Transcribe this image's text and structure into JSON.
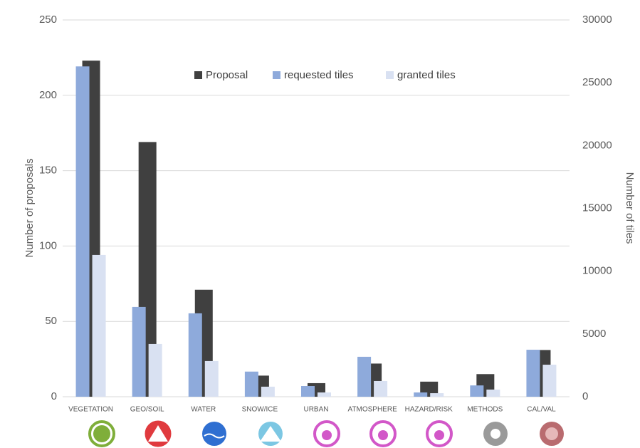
{
  "chart_data": {
    "type": "bar",
    "y_label": "Number of proposals",
    "y2_label": "Number of tiles",
    "categories": [
      "VEGETATION",
      "GEO/SOIL",
      "WATER",
      "SNOW/ICE",
      "URBAN",
      "ATMOSPHERE",
      "HAZARD/RISK",
      "METHODS",
      "CAL/VAL"
    ],
    "series": [
      {
        "name": "Proposal",
        "color": "#404040",
        "values": [
          223,
          169,
          71,
          14,
          9,
          22,
          10,
          15,
          31
        ]
      },
      {
        "name": "requested tiles",
        "color": "#8eaadb",
        "axis": "y2",
        "values": [
          26300,
          7150,
          6640,
          2000,
          850,
          3180,
          340,
          900,
          3740
        ]
      },
      {
        "name": "granted tiles",
        "color": "#d9e1f2",
        "axis": "y2",
        "values": [
          11290,
          4200,
          2840,
          800,
          340,
          1250,
          280,
          570,
          2550
        ]
      }
    ],
    "ylim": [
      0,
      250
    ],
    "yticks": [
      0,
      50,
      100,
      150,
      200,
      250
    ],
    "y2lim": [
      0,
      30000
    ],
    "y2ticks": [
      0,
      5000,
      10000,
      15000,
      20000,
      25000,
      30000
    ],
    "grid": true,
    "legend": "upper center"
  }
}
